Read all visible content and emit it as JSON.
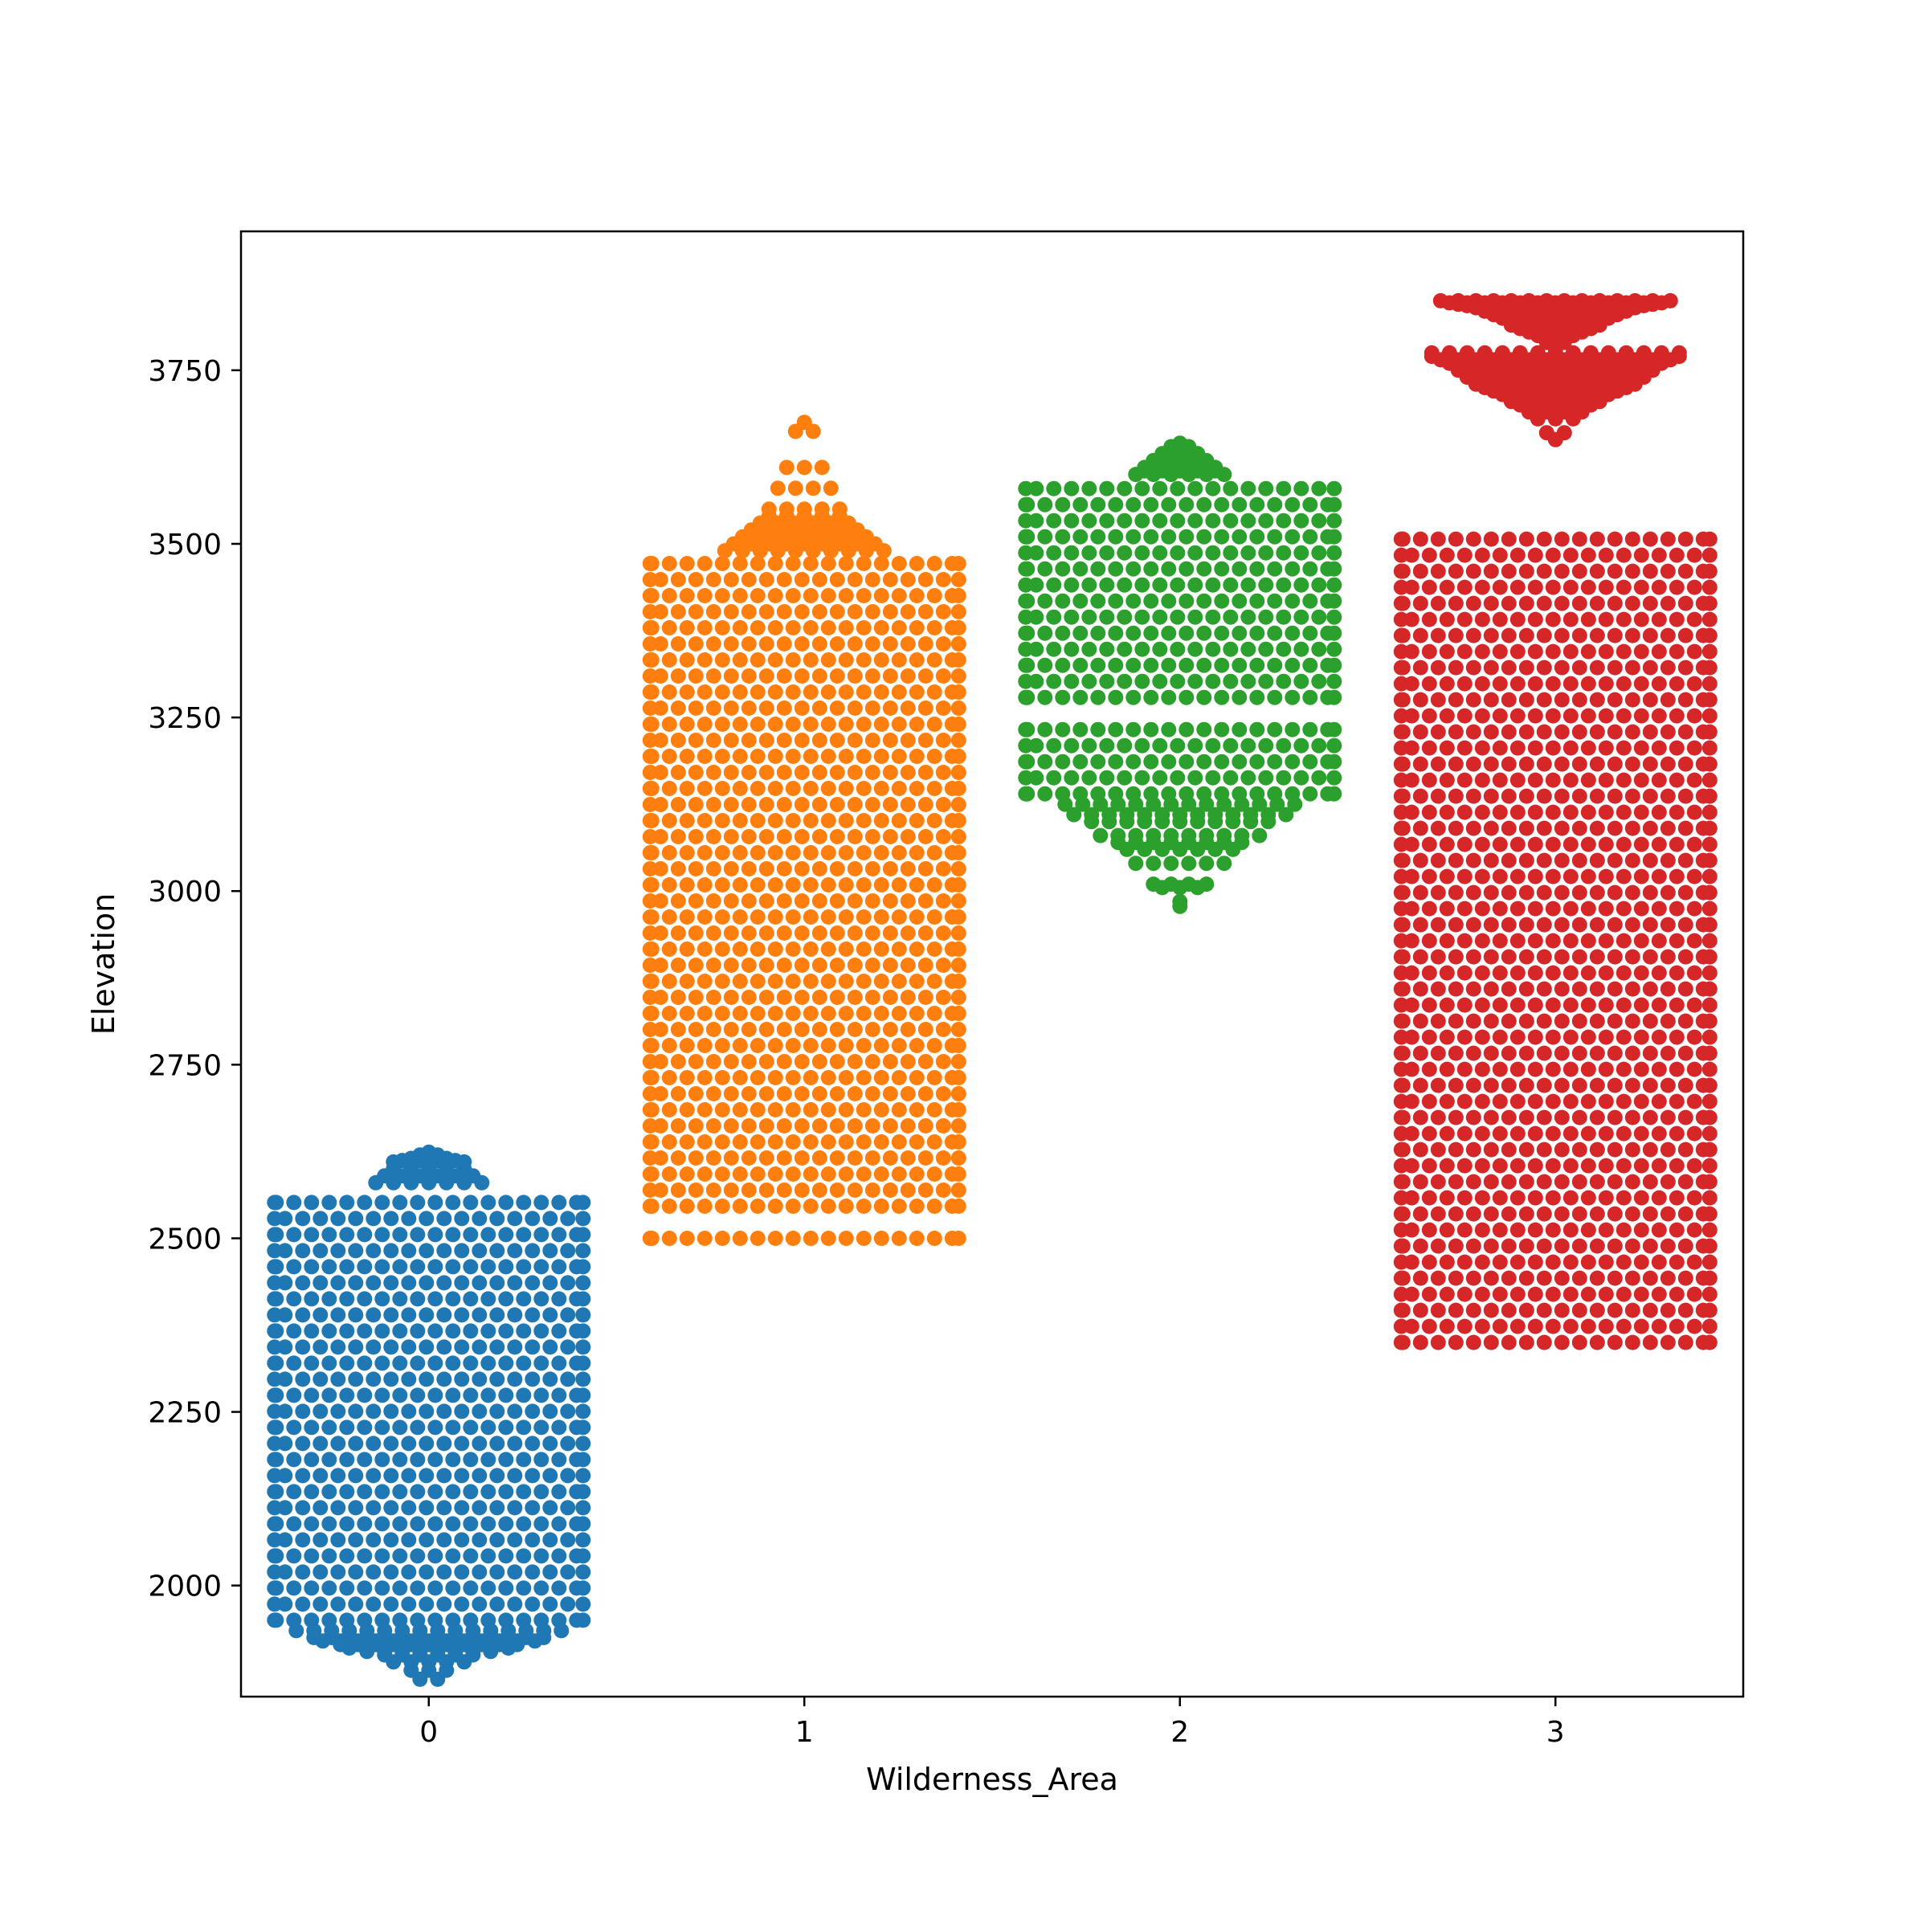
{
  "chart_data": {
    "type": "swarm",
    "xlabel": "Wilderness_Area",
    "ylabel": "Elevation",
    "xlim": [
      -0.5,
      3.5
    ],
    "ylim": [
      1840,
      3950
    ],
    "x_ticks": [
      "0",
      "1",
      "2",
      "3"
    ],
    "y_ticks": [
      2000,
      2250,
      2500,
      2750,
      3000,
      3250,
      3500,
      3750
    ],
    "grid": false,
    "legend": "none",
    "series": [
      {
        "category": "0",
        "color": "#1f77b4",
        "min": 1865,
        "max": 2625,
        "main_range": [
          1950,
          2560
        ],
        "top_outliers": [
          2580,
          2590,
          2600,
          2610,
          2612,
          2615,
          2620,
          2624
        ],
        "bottom_taper": [
          1865,
          1878,
          1890,
          1900,
          1905,
          1910,
          1915,
          1920,
          1925,
          1935
        ]
      },
      {
        "category": "1",
        "color": "#ff7f0e",
        "min": 2480,
        "max": 3675,
        "main_range": [
          2500,
          3480
        ],
        "gaps": [
          [
            2520,
            2540
          ],
          [
            2640,
            2650
          ]
        ],
        "top_outliers": [
          3490,
          3500,
          3510,
          3520,
          3530,
          3540,
          3550,
          3580,
          3610,
          3662,
          3675
        ]
      },
      {
        "category": "2",
        "color": "#2ca02c",
        "min": 2978,
        "max": 3645,
        "main_range": [
          3140,
          3590
        ],
        "gaps": [
          [
            3255,
            3275
          ]
        ],
        "bottom_outliers": [
          2978,
          2985,
          3005,
          3010,
          3040,
          3060,
          3070,
          3080,
          3100,
          3110,
          3125
        ],
        "top_outliers": [
          3600,
          3605,
          3610,
          3620,
          3630,
          3640,
          3645
        ]
      },
      {
        "category": "3",
        "color": "#d62728",
        "min": 2300,
        "max": 3850,
        "main_range": [
          2350,
          3520
        ],
        "upper_clusters": [
          [
            3650,
            3660,
            3680,
            3690,
            3700,
            3705,
            3710,
            3715,
            3720,
            3725,
            3730,
            3740,
            3750,
            3760,
            3765,
            3770,
            3775
          ],
          [
            3780,
            3790,
            3800,
            3805,
            3810,
            3815,
            3820,
            3825,
            3830,
            3835,
            3840,
            3843,
            3845,
            3847,
            3850
          ]
        ]
      }
    ]
  }
}
